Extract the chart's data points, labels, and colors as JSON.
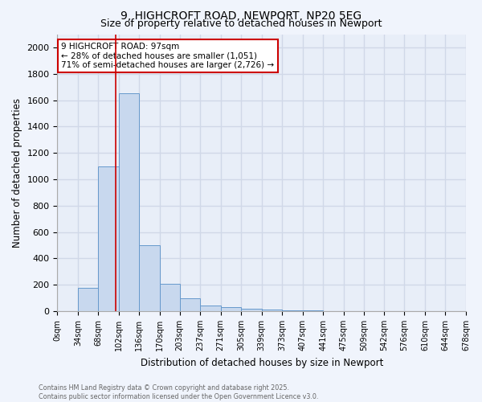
{
  "title_line1": "9, HIGHCROFT ROAD, NEWPORT, NP20 5EG",
  "title_line2": "Size of property relative to detached houses in Newport",
  "xlabel": "Distribution of detached houses by size in Newport",
  "ylabel": "Number of detached properties",
  "annotation_line1": "9 HIGHCROFT ROAD: 97sqm",
  "annotation_line2": "← 28% of detached houses are smaller (1,051)",
  "annotation_line3": "71% of semi-detached houses are larger (2,726) →",
  "property_size": 97,
  "bin_edges": [
    0,
    34,
    68,
    102,
    136,
    170,
    203,
    237,
    271,
    305,
    339,
    373,
    407,
    441,
    475,
    509,
    542,
    576,
    610,
    644,
    678
  ],
  "bin_counts": [
    0,
    175,
    1100,
    1650,
    500,
    210,
    100,
    42,
    28,
    18,
    12,
    8,
    5,
    0,
    0,
    0,
    0,
    0,
    0,
    0
  ],
  "bar_color": "#c8d8ee",
  "bar_edge_color": "#6699cc",
  "vline_color": "#cc0000",
  "vline_x": 97,
  "annotation_box_color": "#cc0000",
  "annotation_text_color": "#000000",
  "background_color": "#e8eef8",
  "grid_color": "#d0d8e8",
  "ylim": [
    0,
    2100
  ],
  "yticks": [
    0,
    200,
    400,
    600,
    800,
    1000,
    1200,
    1400,
    1600,
    1800,
    2000
  ],
  "footer_line1": "Contains HM Land Registry data © Crown copyright and database right 2025.",
  "footer_line2": "Contains public sector information licensed under the Open Government Licence v3.0.",
  "tick_labels": [
    "0sqm",
    "34sqm",
    "68sqm",
    "102sqm",
    "136sqm",
    "170sqm",
    "203sqm",
    "237sqm",
    "271sqm",
    "305sqm",
    "339sqm",
    "373sqm",
    "407sqm",
    "441sqm",
    "475sqm",
    "509sqm",
    "542sqm",
    "576sqm",
    "610sqm",
    "644sqm",
    "678sqm"
  ],
  "fig_facecolor": "#f0f4fc"
}
